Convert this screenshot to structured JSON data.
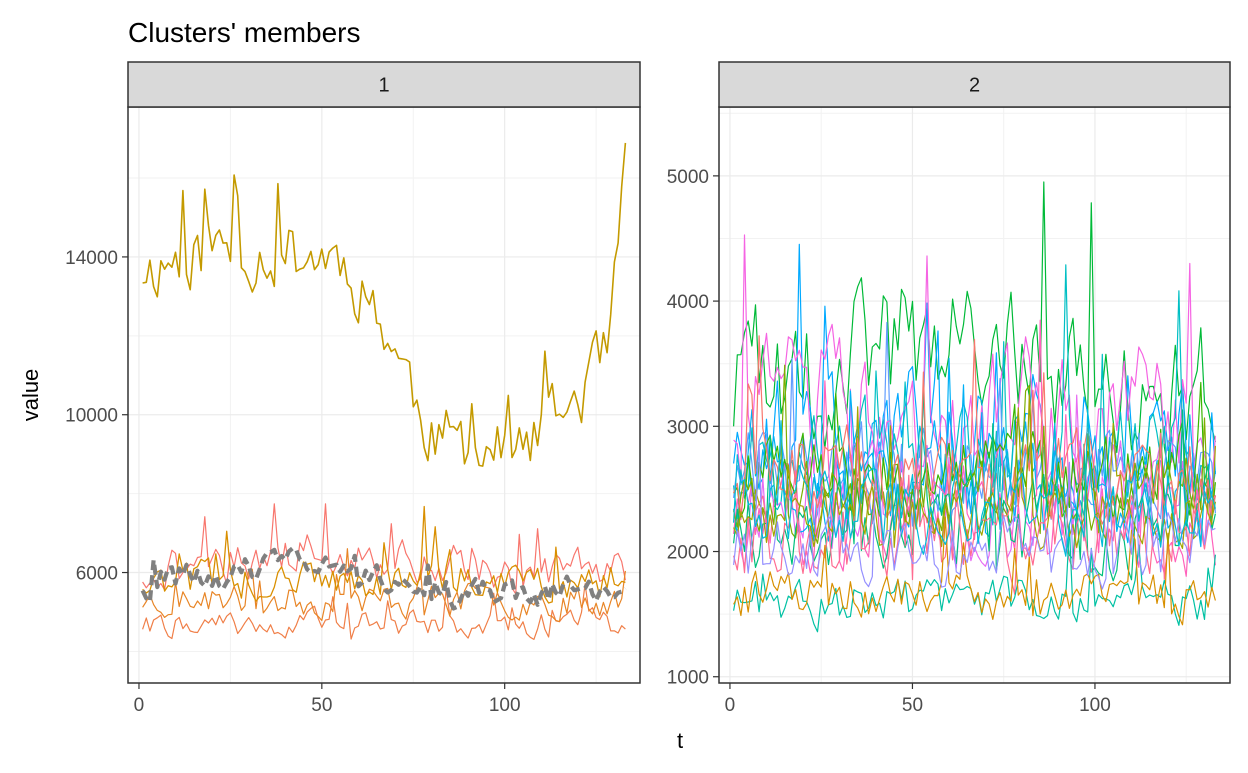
{
  "chart_data": {
    "type": "line",
    "title": "Clusters' members",
    "xlabel": "t",
    "ylabel": "value",
    "grid": true,
    "legend": "none",
    "panels": [
      {
        "strip": "1",
        "xlim": [
          -3,
          137
        ],
        "ylim": [
          3200,
          17800
        ],
        "x_ticks": [
          0,
          50,
          100
        ],
        "y_ticks": [
          6000,
          10000,
          14000
        ],
        "n_points": 133,
        "series": [
          {
            "color": "#C49A00",
            "width": 1.6,
            "seed": 11,
            "base": 13700,
            "spread": 1350,
            "env": [
              [
                0,
                0
              ],
              [
                20,
                500
              ],
              [
                55,
                300
              ],
              [
                65,
                -1000
              ],
              [
                80,
                -4200
              ],
              [
                90,
                -4500
              ],
              [
                105,
                -4700
              ],
              [
                120,
                -3200
              ],
              [
                128,
                -2300
              ],
              [
                133,
                2200
              ]
            ]
          },
          {
            "color": "#F8766D",
            "width": 1.2,
            "seed": 21,
            "base": 6000,
            "spread": 900,
            "env": [
              [
                0,
                0
              ],
              [
                45,
                600
              ],
              [
                70,
                200
              ],
              [
                133,
                0
              ]
            ]
          },
          {
            "color": "#F07F48",
            "width": 1.2,
            "seed": 22,
            "base": 4700,
            "spread": 500,
            "env": [
              [
                0,
                0
              ],
              [
                133,
                0
              ]
            ]
          },
          {
            "color": "#E88526",
            "width": 1.2,
            "seed": 23,
            "base": 5300,
            "spread": 650,
            "env": [
              [
                0,
                0
              ],
              [
                133,
                0
              ]
            ]
          },
          {
            "color": "#D98F00",
            "width": 1.3,
            "seed": 24,
            "base": 5800,
            "spread": 800,
            "env": [
              [
                0,
                0
              ],
              [
                133,
                0
              ]
            ]
          },
          {
            "color": "#808080",
            "width": 4.2,
            "dash": "10,5",
            "seed": 31,
            "base": 5700,
            "spread": 600,
            "env": [
              [
                0,
                0
              ],
              [
                45,
                500
              ],
              [
                60,
                400
              ],
              [
                90,
                -300
              ],
              [
                133,
                0
              ]
            ]
          }
        ]
      },
      {
        "strip": "2",
        "xlim": [
          -3,
          137
        ],
        "ylim": [
          950,
          5550
        ],
        "x_ticks": [
          0,
          50,
          100
        ],
        "y_ticks": [
          1000,
          2000,
          3000,
          4000,
          5000
        ],
        "n_points": 133,
        "series": [
          {
            "color": "#00BA38",
            "width": 1.2,
            "seed": 101,
            "base": 3200,
            "spread": 850,
            "env": [
              [
                0,
                0
              ],
              [
                50,
                500
              ],
              [
                133,
                0
              ]
            ]
          },
          {
            "color": "#00A9FF",
            "width": 1.2,
            "seed": 102,
            "base": 2900,
            "spread": 800,
            "env": [
              [
                0,
                0
              ],
              [
                133,
                0
              ]
            ]
          },
          {
            "color": "#F564E3",
            "width": 1.2,
            "seed": 103,
            "base": 3100,
            "spread": 850,
            "env": [
              [
                0,
                0
              ],
              [
                133,
                0
              ]
            ]
          },
          {
            "color": "#00BFC4",
            "width": 1.2,
            "seed": 104,
            "base": 2700,
            "spread": 700,
            "env": [
              [
                0,
                0
              ],
              [
                133,
                0
              ]
            ]
          },
          {
            "color": "#619CFF",
            "width": 1.2,
            "seed": 105,
            "base": 2600,
            "spread": 700,
            "env": [
              [
                0,
                0
              ],
              [
                133,
                0
              ]
            ]
          },
          {
            "color": "#E76BF3",
            "width": 1.2,
            "seed": 106,
            "base": 2400,
            "spread": 650,
            "env": [
              [
                0,
                0
              ],
              [
                133,
                0
              ]
            ]
          },
          {
            "color": "#00B0F6",
            "width": 1.2,
            "seed": 107,
            "base": 2500,
            "spread": 650,
            "env": [
              [
                0,
                0
              ],
              [
                133,
                0
              ]
            ]
          },
          {
            "color": "#FF62BC",
            "width": 1.2,
            "seed": 108,
            "base": 2300,
            "spread": 650,
            "env": [
              [
                0,
                0
              ],
              [
                133,
                0
              ]
            ]
          },
          {
            "color": "#39B600",
            "width": 1.2,
            "seed": 109,
            "base": 2600,
            "spread": 550,
            "env": [
              [
                0,
                0
              ],
              [
                133,
                0
              ]
            ]
          },
          {
            "color": "#7CAE00",
            "width": 1.2,
            "seed": 110,
            "base": 2450,
            "spread": 500,
            "env": [
              [
                0,
                0
              ],
              [
                133,
                0
              ]
            ]
          },
          {
            "color": "#00BF7D",
            "width": 1.2,
            "seed": 111,
            "base": 2200,
            "spread": 550,
            "env": [
              [
                0,
                0
              ],
              [
                133,
                0
              ]
            ]
          },
          {
            "color": "#F8766D",
            "width": 1.2,
            "seed": 112,
            "base": 2600,
            "spread": 550,
            "env": [
              [
                0,
                0
              ],
              [
                133,
                0
              ]
            ]
          },
          {
            "color": "#FF6C91",
            "width": 1.2,
            "seed": 113,
            "base": 2100,
            "spread": 550,
            "env": [
              [
                0,
                0
              ],
              [
                133,
                0
              ]
            ]
          },
          {
            "color": "#00C1A3",
            "width": 1.2,
            "seed": 114,
            "base": 1600,
            "spread": 300,
            "env": [
              [
                0,
                0
              ],
              [
                133,
                0
              ]
            ]
          },
          {
            "color": "#D89000",
            "width": 1.2,
            "seed": 115,
            "base": 1650,
            "spread": 300,
            "env": [
              [
                0,
                0
              ],
              [
                133,
                0
              ]
            ]
          },
          {
            "color": "#A3A500",
            "width": 1.2,
            "seed": 116,
            "base": 2300,
            "spread": 450,
            "env": [
              [
                0,
                0
              ],
              [
                133,
                0
              ]
            ]
          },
          {
            "color": "#9590FF",
            "width": 1.2,
            "seed": 117,
            "base": 2000,
            "spread": 450,
            "env": [
              [
                0,
                0
              ],
              [
                133,
                0
              ]
            ]
          },
          {
            "color": "#00BCD8",
            "width": 1.2,
            "seed": 118,
            "base": 2350,
            "spread": 500,
            "env": [
              [
                0,
                0
              ],
              [
                133,
                0
              ]
            ]
          }
        ]
      }
    ]
  }
}
